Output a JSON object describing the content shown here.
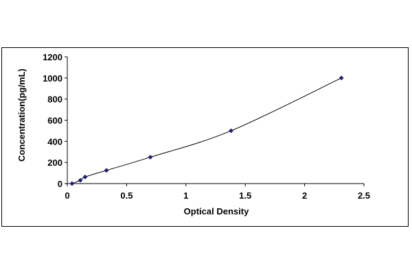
{
  "chart_data": {
    "type": "scatter",
    "title": "",
    "xlabel": "Optical Density",
    "ylabel": "Concentration(pg/mL)",
    "xlim": [
      0,
      2.5
    ],
    "ylim": [
      0,
      1200
    ],
    "x_ticks": [
      0,
      0.5,
      1,
      1.5,
      2,
      2.5
    ],
    "x_tick_labels": [
      "0",
      "0.5",
      "1",
      "1.5",
      "2",
      "2.5"
    ],
    "y_ticks": [
      0,
      200,
      400,
      600,
      800,
      1000,
      1200
    ],
    "y_tick_labels": [
      "0",
      "200",
      "400",
      "600",
      "800",
      "1000",
      "1200"
    ],
    "grid": false,
    "legend": "none",
    "series": [
      {
        "marker": "diamond",
        "trendline": true,
        "x": [
          0.04,
          0.11,
          0.15,
          0.33,
          0.7,
          1.38,
          2.31
        ],
        "y": [
          0,
          31.25,
          62.5,
          125,
          250,
          500,
          1000
        ]
      }
    ],
    "colors": {
      "marker": "#1f1f7a",
      "line": "#000000"
    }
  }
}
